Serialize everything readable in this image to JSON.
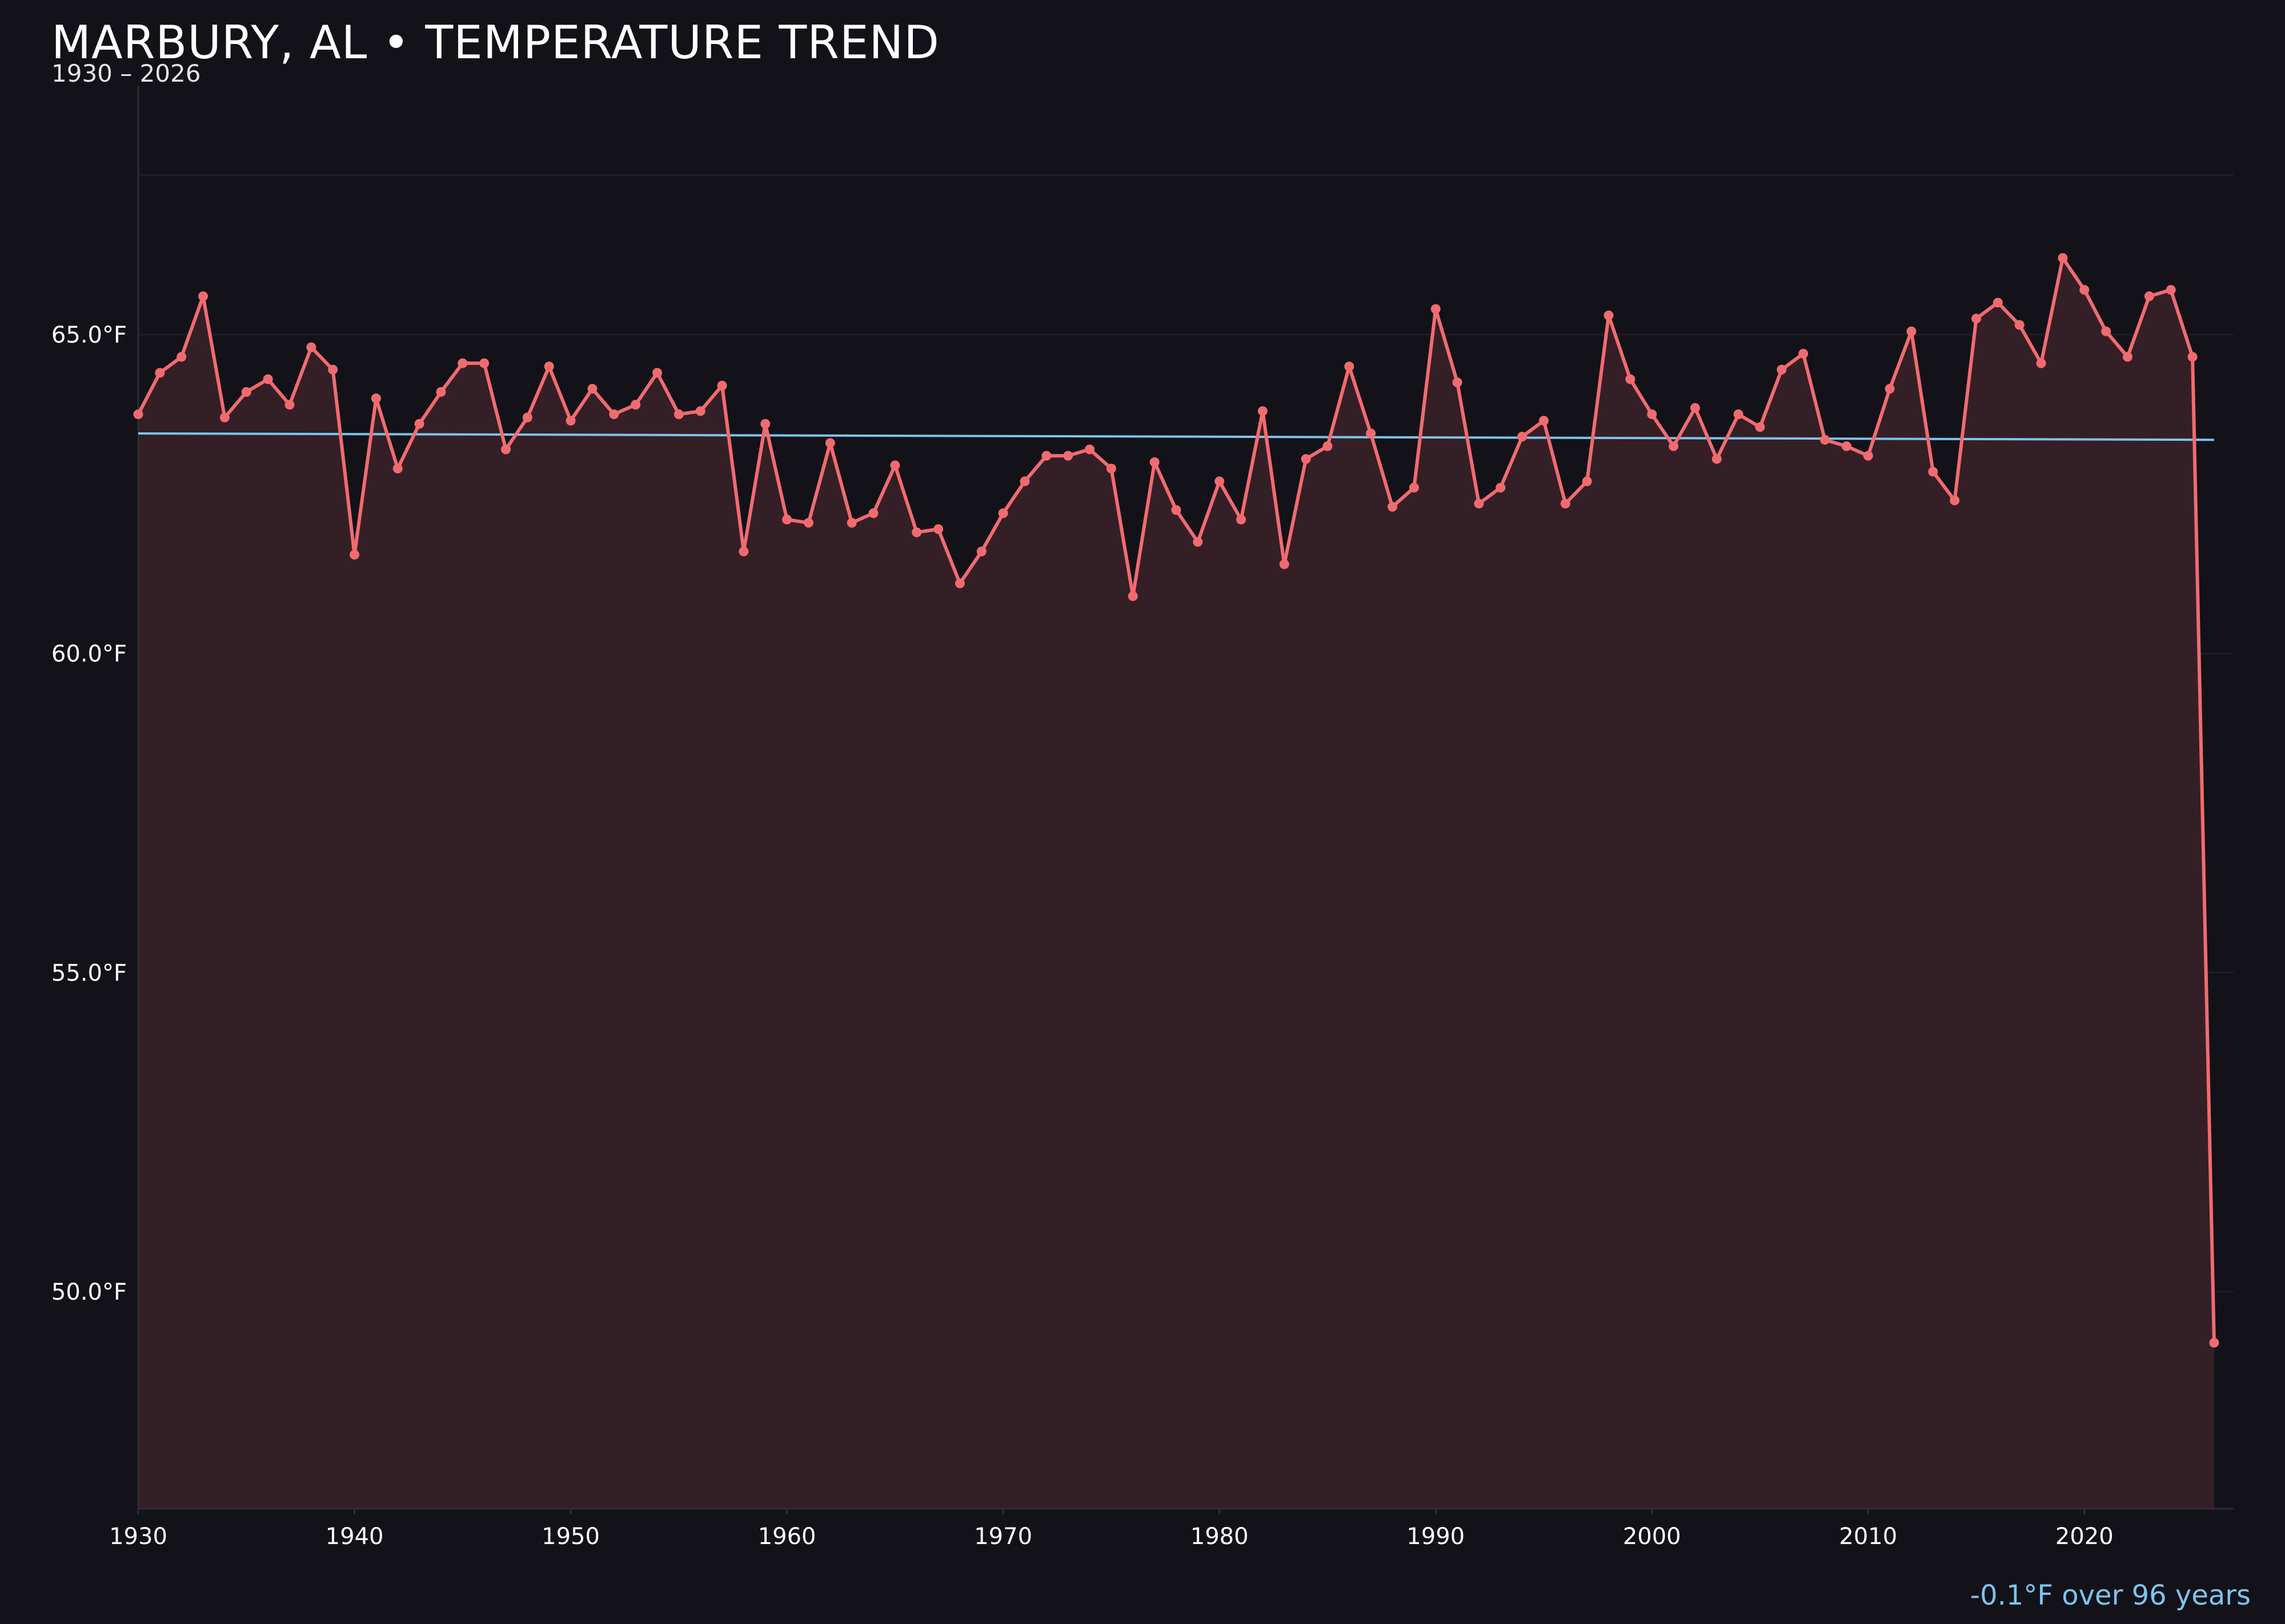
{
  "header": {
    "title": "MARBURY, AL • TEMPERATURE TREND",
    "subtitle": "1930 – 2026"
  },
  "trend_note": "-0.1°F over 96 years",
  "colors": {
    "background": "#131219",
    "line": "#f06b70",
    "fill": "#351f26",
    "trend": "#7cc4ee",
    "grid": "#1e1c24",
    "axis_text": "#ffffff"
  },
  "chart_data": {
    "type": "line",
    "title": "MARBURY, AL • TEMPERATURE TREND",
    "subtitle": "1930 – 2026",
    "xlabel": "",
    "ylabel": "",
    "xlim": [
      1930,
      2026.9
    ],
    "ylim": [
      46.6,
      68.9
    ],
    "x_ticks": [
      1930,
      1940,
      1950,
      1960,
      1970,
      1980,
      1990,
      2000,
      2010,
      2020
    ],
    "y_ticks": [
      50.0,
      55.0,
      60.0,
      65.0
    ],
    "y_tick_labels": [
      "50.0°F",
      "55.0°F",
      "60.0°F",
      "65.0°F"
    ],
    "grid": true,
    "series": [
      {
        "name": "",
        "type": "line",
        "marker": "circle",
        "fill_below": true,
        "x": [
          1930,
          1931,
          1932,
          1933,
          1934,
          1935,
          1936,
          1937,
          1938,
          1939,
          1940,
          1941,
          1942,
          1943,
          1944,
          1945,
          1946,
          1947,
          1948,
          1949,
          1950,
          1951,
          1952,
          1953,
          1954,
          1955,
          1956,
          1957,
          1958,
          1959,
          1960,
          1961,
          1962,
          1963,
          1964,
          1965,
          1966,
          1967,
          1968,
          1969,
          1970,
          1971,
          1972,
          1973,
          1974,
          1975,
          1976,
          1977,
          1978,
          1979,
          1980,
          1981,
          1982,
          1983,
          1984,
          1985,
          1986,
          1987,
          1988,
          1989,
          1990,
          1991,
          1992,
          1993,
          1994,
          1995,
          1996,
          1997,
          1998,
          1999,
          2000,
          2001,
          2002,
          2003,
          2004,
          2005,
          2006,
          2007,
          2008,
          2009,
          2010,
          2011,
          2012,
          2013,
          2014,
          2015,
          2016,
          2017,
          2018,
          2019,
          2020,
          2021,
          2022,
          2023,
          2024,
          2025,
          2026
        ],
        "y": [
          63.75,
          64.4,
          64.65,
          65.6,
          63.7,
          64.1,
          64.3,
          63.9,
          64.8,
          64.45,
          61.55,
          64.0,
          62.9,
          63.6,
          64.1,
          64.55,
          64.55,
          63.2,
          63.7,
          64.5,
          63.65,
          64.15,
          63.75,
          63.9,
          64.4,
          63.75,
          63.8,
          64.2,
          61.6,
          63.6,
          62.1,
          62.05,
          63.3,
          62.05,
          62.2,
          62.95,
          61.9,
          61.95,
          61.1,
          61.6,
          62.2,
          62.7,
          63.1,
          63.1,
          63.2,
          62.9,
          60.9,
          63.0,
          62.25,
          61.75,
          62.7,
          62.1,
          63.8,
          61.4,
          63.05,
          63.25,
          64.5,
          63.45,
          62.3,
          62.6,
          65.4,
          64.25,
          62.35,
          62.6,
          63.4,
          63.65,
          62.35,
          62.7,
          65.3,
          64.3,
          63.75,
          63.25,
          63.85,
          63.05,
          63.75,
          63.55,
          64.45,
          64.7,
          63.35,
          63.25,
          63.1,
          64.15,
          65.05,
          62.85,
          62.4,
          65.25,
          65.5,
          65.15,
          64.55,
          66.2,
          65.7,
          65.05,
          64.65,
          65.6,
          65.7,
          64.65,
          49.2
        ]
      },
      {
        "name": "",
        "type": "trend",
        "x": [
          1930,
          2026
        ],
        "y": [
          63.45,
          63.35
        ]
      }
    ]
  }
}
